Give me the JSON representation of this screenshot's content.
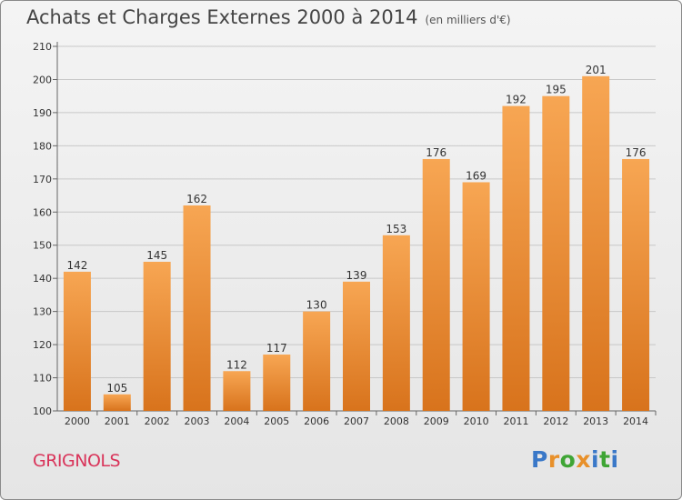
{
  "title": "Achats et Charges Externes 2000 à 2014",
  "unit": "(en milliers d'€)",
  "commune": "GRIGNOLS",
  "logo": {
    "text": "Proxiti",
    "letters": [
      "P",
      "r",
      "o",
      "x",
      "i",
      "t",
      "i"
    ],
    "colors": [
      "#3a78c8",
      "#e8902a",
      "#3fa535",
      "#e8902a",
      "#3a78c8",
      "#3fa535",
      "#3a78c8"
    ]
  },
  "colors": {
    "bar_top": "#f7a653",
    "bar_bottom": "#d8731c",
    "commune": "#d9345a"
  },
  "chart_data": {
    "type": "bar",
    "title": "Achats et Charges Externes 2000 à 2014",
    "categories": [
      "2000",
      "2001",
      "2002",
      "2003",
      "2004",
      "2005",
      "2006",
      "2007",
      "2008",
      "2009",
      "2010",
      "2011",
      "2012",
      "2013",
      "2014"
    ],
    "values": [
      142,
      105,
      145,
      162,
      112,
      117,
      130,
      139,
      153,
      176,
      169,
      192,
      195,
      201,
      176
    ],
    "ylim": [
      100,
      210
    ],
    "yticks": [
      100,
      110,
      120,
      130,
      140,
      150,
      160,
      170,
      180,
      190,
      200,
      210
    ],
    "grid": true
  }
}
